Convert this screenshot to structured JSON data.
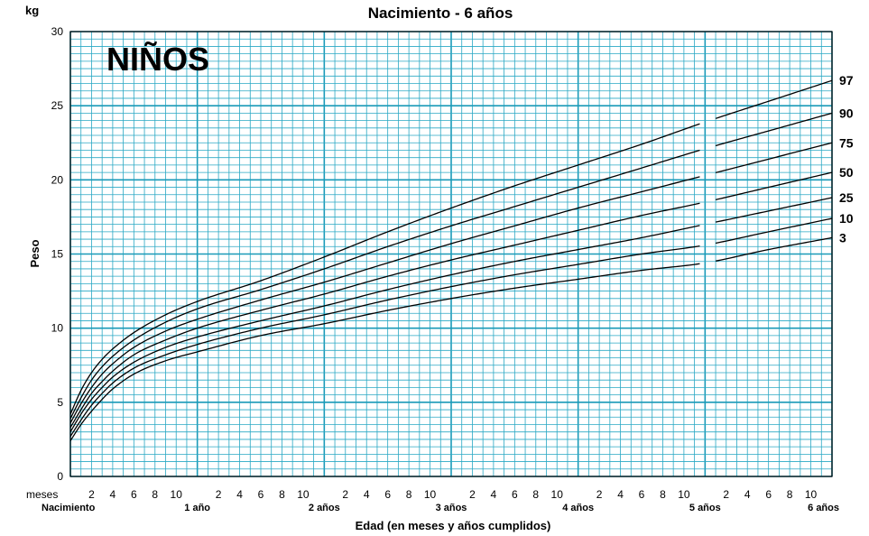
{
  "chart_data": {
    "type": "line",
    "title": "Nacimiento - 6 años",
    "subset_label": "NIÑOS",
    "y_unit": "kg",
    "ylabel": "Peso",
    "xlabel": "Edad (en meses y años cumplidos)",
    "x_unit_label": "meses",
    "xlim": [
      0,
      72
    ],
    "ylim": [
      0,
      30
    ],
    "y_ticks": [
      0,
      5,
      10,
      15,
      20,
      25,
      30
    ],
    "month_ticks": [
      2,
      4,
      6,
      8,
      10
    ],
    "year_labels": [
      "Nacimiento",
      "1 año",
      "2 años",
      "3 años",
      "4 años",
      "5 años",
      "6 años"
    ],
    "grid": true,
    "x": [
      0,
      1,
      2,
      3,
      4,
      6,
      9,
      12,
      18,
      24,
      30,
      36,
      42,
      48,
      54,
      60,
      66,
      72
    ],
    "series": [
      {
        "name": "97",
        "values": [
          4.2,
          5.8,
          7.0,
          7.9,
          8.6,
          9.7,
          10.9,
          11.8,
          13.2,
          14.8,
          16.5,
          18.1,
          19.6,
          21.0,
          22.4,
          23.9,
          25.3,
          26.7
        ]
      },
      {
        "name": "90",
        "values": [
          3.9,
          5.3,
          6.5,
          7.4,
          8.1,
          9.2,
          10.4,
          11.3,
          12.6,
          14.0,
          15.5,
          16.9,
          18.2,
          19.5,
          20.8,
          22.1,
          23.3,
          24.5
        ]
      },
      {
        "name": "75",
        "values": [
          3.6,
          4.9,
          6.0,
          6.9,
          7.6,
          8.7,
          9.8,
          10.6,
          11.9,
          13.1,
          14.4,
          15.7,
          16.9,
          18.1,
          19.2,
          20.3,
          21.4,
          22.5
        ]
      },
      {
        "name": "50",
        "values": [
          3.3,
          4.5,
          5.6,
          6.4,
          7.1,
          8.2,
          9.2,
          10.0,
          11.2,
          12.3,
          13.5,
          14.6,
          15.6,
          16.6,
          17.6,
          18.5,
          19.5,
          20.5
        ]
      },
      {
        "name": "25",
        "values": [
          3.0,
          4.2,
          5.2,
          6.0,
          6.7,
          7.7,
          8.7,
          9.4,
          10.5,
          11.5,
          12.6,
          13.6,
          14.5,
          15.3,
          16.1,
          17.0,
          17.9,
          18.8
        ]
      },
      {
        "name": "10",
        "values": [
          2.7,
          3.8,
          4.8,
          5.6,
          6.3,
          7.3,
          8.2,
          8.9,
          10.0,
          10.9,
          11.9,
          12.8,
          13.6,
          14.3,
          15.0,
          15.6,
          16.5,
          17.4
        ]
      },
      {
        "name": "3",
        "values": [
          2.4,
          3.5,
          4.4,
          5.2,
          5.9,
          6.9,
          7.8,
          8.4,
          9.5,
          10.3,
          11.2,
          12.0,
          12.7,
          13.3,
          13.9,
          14.4,
          15.3,
          16.1
        ]
      }
    ],
    "gap_at_x": 60
  }
}
